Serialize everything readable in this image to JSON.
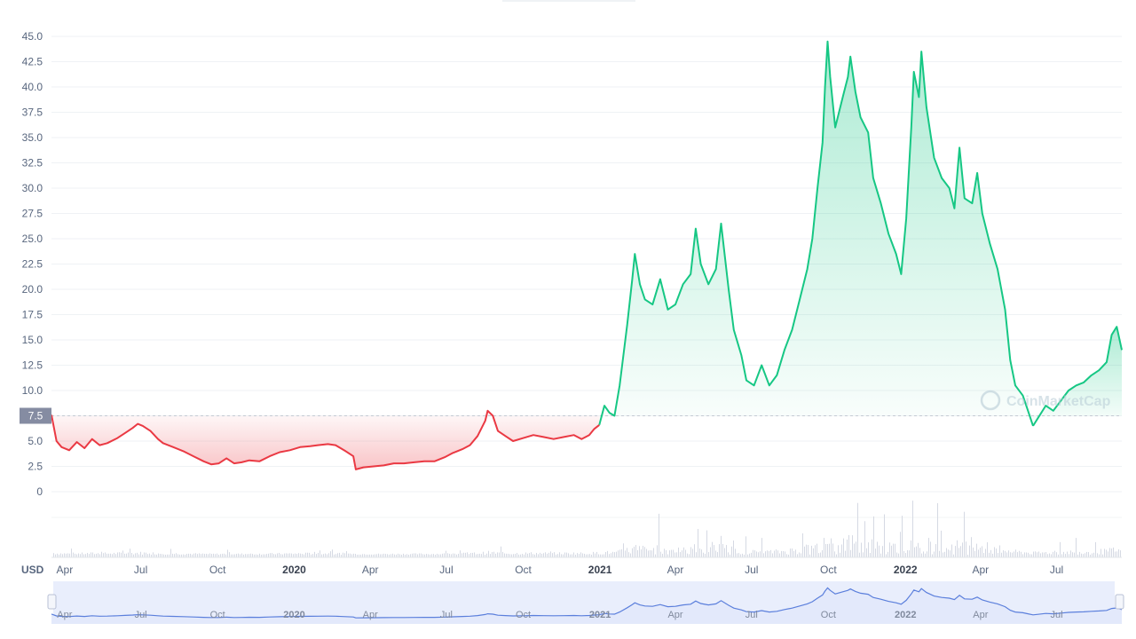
{
  "chart_data": {
    "type": "area",
    "baseline": 7.5,
    "baseline_label": "7.5",
    "unit_label": "USD",
    "ylim": [
      0,
      45
    ],
    "yticks": [
      "0",
      "2.5",
      "5.0",
      "7.5",
      "10.0",
      "12.5",
      "15.0",
      "17.5",
      "20.0",
      "22.5",
      "25.0",
      "27.5",
      "30.0",
      "32.5",
      "35.0",
      "37.5",
      "40.0",
      "42.5",
      "45.0"
    ],
    "xticks": [
      {
        "label": "Apr",
        "t": 0.12,
        "bold": false
      },
      {
        "label": "Jul",
        "t": 3.12,
        "bold": false
      },
      {
        "label": "Oct",
        "t": 6.15,
        "bold": false
      },
      {
        "label": "2020",
        "t": 9.17,
        "bold": true
      },
      {
        "label": "Apr",
        "t": 12.17,
        "bold": false
      },
      {
        "label": "Jul",
        "t": 15.17,
        "bold": false
      },
      {
        "label": "Oct",
        "t": 18.2,
        "bold": false
      },
      {
        "label": "2021",
        "t": 21.23,
        "bold": true
      },
      {
        "label": "Apr",
        "t": 24.2,
        "bold": false
      },
      {
        "label": "Jul",
        "t": 27.2,
        "bold": false
      },
      {
        "label": "Oct",
        "t": 30.23,
        "bold": false
      },
      {
        "label": "2022",
        "t": 33.27,
        "bold": true
      },
      {
        "label": "Apr",
        "t": 36.23,
        "bold": false
      },
      {
        "label": "Jul",
        "t": 39.23,
        "bold": false
      }
    ],
    "x_range": [
      -0.4,
      41.8
    ],
    "series": [
      {
        "values": [
          [
            -0.4,
            7.6
          ],
          [
            -0.2,
            5.0
          ],
          [
            0,
            4.4
          ],
          [
            0.3,
            4.1
          ],
          [
            0.6,
            4.9
          ],
          [
            0.9,
            4.3
          ],
          [
            1.2,
            5.2
          ],
          [
            1.5,
            4.6
          ],
          [
            1.8,
            4.8
          ],
          [
            2.2,
            5.3
          ],
          [
            2.5,
            5.8
          ],
          [
            2.8,
            6.3
          ],
          [
            3.0,
            6.7
          ],
          [
            3.2,
            6.5
          ],
          [
            3.5,
            6.0
          ],
          [
            3.8,
            5.2
          ],
          [
            4.0,
            4.8
          ],
          [
            4.4,
            4.4
          ],
          [
            4.8,
            4.0
          ],
          [
            5.2,
            3.5
          ],
          [
            5.6,
            3.0
          ],
          [
            5.9,
            2.7
          ],
          [
            6.2,
            2.8
          ],
          [
            6.5,
            3.3
          ],
          [
            6.8,
            2.8
          ],
          [
            7.1,
            2.9
          ],
          [
            7.4,
            3.1
          ],
          [
            7.8,
            3.0
          ],
          [
            8.2,
            3.5
          ],
          [
            8.6,
            3.9
          ],
          [
            9.0,
            4.1
          ],
          [
            9.4,
            4.4
          ],
          [
            9.8,
            4.5
          ],
          [
            10.1,
            4.6
          ],
          [
            10.5,
            4.7
          ],
          [
            10.8,
            4.6
          ],
          [
            11.2,
            4.0
          ],
          [
            11.5,
            3.5
          ],
          [
            11.6,
            2.2
          ],
          [
            11.9,
            2.4
          ],
          [
            12.3,
            2.5
          ],
          [
            12.7,
            2.6
          ],
          [
            13.1,
            2.8
          ],
          [
            13.5,
            2.8
          ],
          [
            13.9,
            2.9
          ],
          [
            14.3,
            3.0
          ],
          [
            14.7,
            3.0
          ],
          [
            15.1,
            3.4
          ],
          [
            15.4,
            3.8
          ],
          [
            15.8,
            4.2
          ],
          [
            16.1,
            4.6
          ],
          [
            16.4,
            5.5
          ],
          [
            16.7,
            7.0
          ],
          [
            16.8,
            8.0
          ],
          [
            17.0,
            7.5
          ],
          [
            17.2,
            6.0
          ],
          [
            17.5,
            5.5
          ],
          [
            17.8,
            5.0
          ],
          [
            18.2,
            5.3
          ],
          [
            18.6,
            5.6
          ],
          [
            19.0,
            5.4
          ],
          [
            19.4,
            5.2
          ],
          [
            19.8,
            5.4
          ],
          [
            20.2,
            5.6
          ],
          [
            20.5,
            5.2
          ],
          [
            20.8,
            5.6
          ],
          [
            21.0,
            6.2
          ],
          [
            21.2,
            6.6
          ]
        ],
        "color": "#ea3943"
      },
      {
        "values": [
          [
            21.2,
            6.6
          ],
          [
            21.4,
            8.5
          ],
          [
            21.6,
            7.8
          ],
          [
            21.8,
            7.5
          ],
          [
            22.0,
            10.5
          ],
          [
            22.3,
            16.5
          ],
          [
            22.5,
            21.0
          ],
          [
            22.6,
            23.5
          ],
          [
            22.8,
            20.5
          ],
          [
            23.0,
            19.0
          ],
          [
            23.3,
            18.5
          ],
          [
            23.6,
            21.0
          ],
          [
            23.9,
            18.0
          ],
          [
            24.2,
            18.5
          ],
          [
            24.5,
            20.5
          ],
          [
            24.8,
            21.5
          ],
          [
            25.0,
            26.0
          ],
          [
            25.2,
            22.5
          ],
          [
            25.5,
            20.5
          ],
          [
            25.8,
            22.0
          ],
          [
            26.0,
            26.5
          ],
          [
            26.3,
            20.0
          ],
          [
            26.5,
            16.0
          ],
          [
            26.8,
            13.5
          ],
          [
            27.0,
            11.0
          ],
          [
            27.3,
            10.5
          ],
          [
            27.6,
            12.5
          ],
          [
            27.9,
            10.5
          ],
          [
            28.2,
            11.5
          ],
          [
            28.5,
            14.0
          ],
          [
            28.8,
            16.0
          ],
          [
            29.1,
            19.0
          ],
          [
            29.4,
            22.0
          ],
          [
            29.6,
            25.0
          ],
          [
            29.8,
            30.0
          ],
          [
            30.0,
            34.5
          ],
          [
            30.1,
            40.0
          ],
          [
            30.2,
            44.5
          ],
          [
            30.3,
            41.0
          ],
          [
            30.5,
            36.0
          ],
          [
            30.8,
            39.0
          ],
          [
            31.0,
            41.0
          ],
          [
            31.1,
            43.0
          ],
          [
            31.3,
            39.5
          ],
          [
            31.5,
            37.0
          ],
          [
            31.8,
            35.5
          ],
          [
            32.0,
            31.0
          ],
          [
            32.3,
            28.5
          ],
          [
            32.6,
            25.5
          ],
          [
            32.9,
            23.5
          ],
          [
            33.1,
            21.5
          ],
          [
            33.3,
            27.0
          ],
          [
            33.5,
            36.0
          ],
          [
            33.6,
            41.5
          ],
          [
            33.8,
            39.0
          ],
          [
            33.9,
            43.5
          ],
          [
            34.1,
            38.0
          ],
          [
            34.4,
            33.0
          ],
          [
            34.7,
            31.0
          ],
          [
            35.0,
            30.0
          ],
          [
            35.2,
            28.0
          ],
          [
            35.4,
            34.0
          ],
          [
            35.6,
            29.0
          ],
          [
            35.9,
            28.5
          ],
          [
            36.1,
            31.5
          ],
          [
            36.3,
            27.5
          ],
          [
            36.6,
            24.5
          ],
          [
            36.9,
            22.0
          ],
          [
            37.2,
            18.0
          ],
          [
            37.4,
            13.0
          ],
          [
            37.6,
            10.5
          ],
          [
            37.9,
            9.5
          ],
          [
            38.1,
            8.0
          ],
          [
            38.3,
            6.5
          ]
        ],
        "color": "#16c784"
      },
      {
        "values": [
          [
            38.3,
            6.5
          ],
          [
            38.5,
            7.3
          ],
          [
            38.8,
            8.5
          ],
          [
            39.1,
            8.0
          ],
          [
            39.4,
            9.0
          ],
          [
            39.7,
            10.0
          ],
          [
            40.0,
            10.5
          ],
          [
            40.3,
            10.8
          ],
          [
            40.6,
            11.5
          ],
          [
            40.9,
            12.0
          ],
          [
            41.2,
            12.8
          ],
          [
            41.4,
            15.5
          ],
          [
            41.6,
            16.3
          ],
          [
            41.8,
            14.0
          ]
        ],
        "color": "#16c784"
      }
    ]
  },
  "watermark": {
    "text": "CoinMarketCap"
  },
  "colors": {
    "up": "#16c784",
    "down": "#ea3943",
    "navigator_line": "#5b7fdc",
    "navigator_fill": "#e3e9fb"
  }
}
